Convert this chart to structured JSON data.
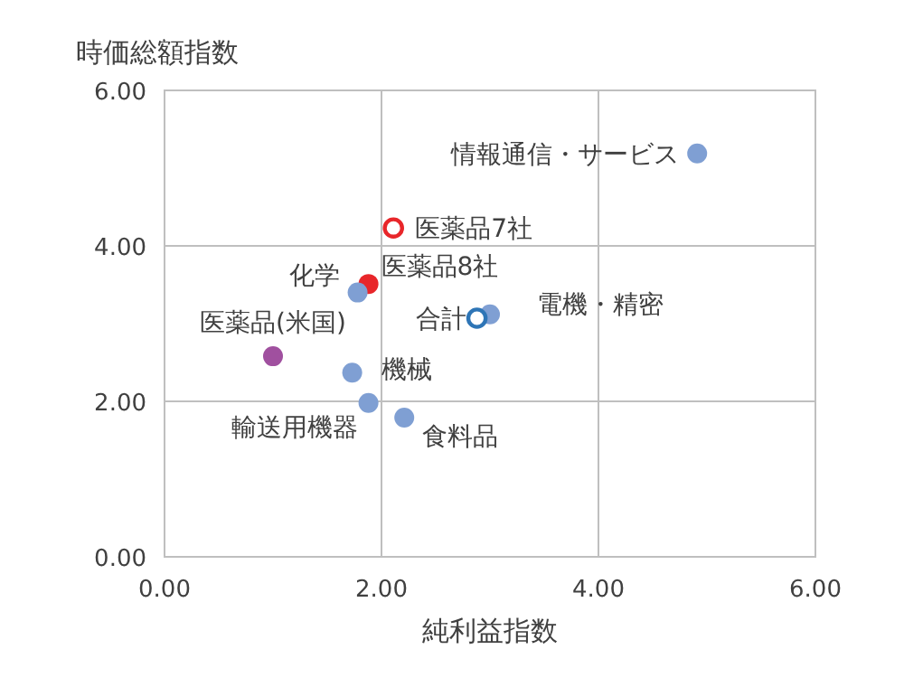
{
  "chart_data": {
    "type": "scatter",
    "xlabel": "純利益指数",
    "ylabel": "時価総額指数",
    "xlim": [
      0,
      6
    ],
    "ylim": [
      0,
      6
    ],
    "xticks": [
      {
        "value": 0,
        "label": "0.00"
      },
      {
        "value": 2,
        "label": "2.00"
      },
      {
        "value": 4,
        "label": "4.00"
      },
      {
        "value": 6,
        "label": "6.00"
      }
    ],
    "yticks": [
      {
        "value": 0,
        "label": "0.00"
      },
      {
        "value": 2,
        "label": "2.00"
      },
      {
        "value": 4,
        "label": "4.00"
      },
      {
        "value": 6,
        "label": "6.00"
      }
    ],
    "grid": true,
    "marker": "circle",
    "series": [
      {
        "name": "情報通信・サービス",
        "color": "#7f9fd3",
        "x": [
          4.91
        ],
        "values": [
          5.19
        ]
      },
      {
        "name": "医薬品7社",
        "color": "#e8262a",
        "x": [
          2.11
        ],
        "values": [
          4.23
        ],
        "marker": "circle-open"
      },
      {
        "name": "医薬品8社",
        "color": "#e8262a",
        "x": [
          1.88
        ],
        "values": [
          3.51
        ]
      },
      {
        "name": "化学",
        "color": "#7f9fd3",
        "x": [
          1.78
        ],
        "values": [
          3.4
        ]
      },
      {
        "name": "電機・精密",
        "color": "#7f9fd3",
        "x": [
          3.0
        ],
        "values": [
          3.12
        ]
      },
      {
        "name": "合計",
        "color": "#2e75b6",
        "x": [
          2.88
        ],
        "values": [
          3.07
        ],
        "marker": "circle-open"
      },
      {
        "name": "医薬品(米国)",
        "color": "#a0509f",
        "x": [
          1.0
        ],
        "values": [
          2.58
        ]
      },
      {
        "name": "機械",
        "color": "#7f9fd3",
        "x": [
          1.73
        ],
        "values": [
          2.37
        ]
      },
      {
        "name": "輸送用機器",
        "color": "#7f9fd3",
        "x": [
          1.88
        ],
        "values": [
          1.98
        ]
      },
      {
        "name": "食料品",
        "color": "#7f9fd3",
        "x": [
          2.21
        ],
        "values": [
          1.79
        ]
      }
    ]
  }
}
